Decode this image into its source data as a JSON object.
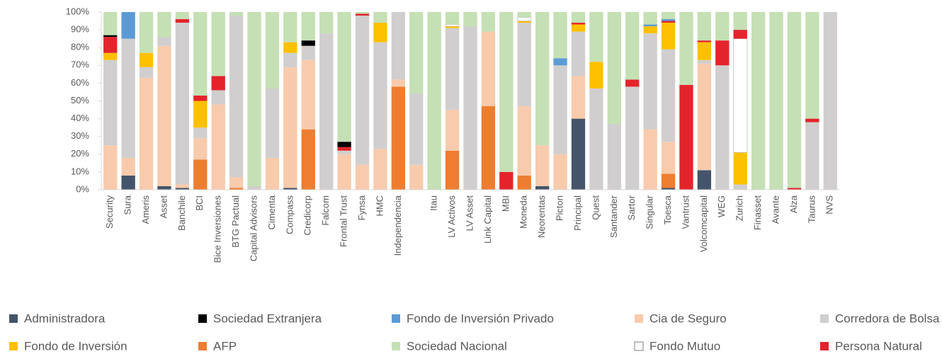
{
  "chart_data": {
    "type": "bar",
    "stacked": true,
    "categories": [
      "Security",
      "Sura",
      "Ameris",
      "Asset",
      "Banchile",
      "BCI",
      "Bice Inversiones",
      "BTG Pactual",
      "Capital Advisors",
      "Cimenta",
      "Compass",
      "Credicorp",
      "Falcom",
      "Frontal Trust",
      "Fynsa",
      "HMC",
      "Independencia",
      null,
      "Itau",
      "LV Activos",
      "LV Asset",
      "Link Capital",
      "MBI",
      "Moneda",
      "Neorentas",
      "Picton",
      "Principal",
      "Quest",
      "Santander",
      "Sartor",
      "Singular",
      "Toesca",
      "Vantrust",
      "Volcomcapital",
      "WEG",
      "Zurich",
      "Finasset",
      "Avante",
      "Alza",
      "Taurus",
      "NVS"
    ],
    "ylim": [
      0,
      100
    ],
    "yticks": [
      {
        "value": 0,
        "label": "0%"
      },
      {
        "value": 10,
        "label": "10%"
      },
      {
        "value": 20,
        "label": "20%"
      },
      {
        "value": 30,
        "label": "30%"
      },
      {
        "value": 40,
        "label": "40%"
      },
      {
        "value": 50,
        "label": "50%"
      },
      {
        "value": 60,
        "label": "60%"
      },
      {
        "value": 70,
        "label": "70%"
      },
      {
        "value": 80,
        "label": "80%"
      },
      {
        "value": 90,
        "label": "90%"
      },
      {
        "value": 100,
        "label": "100%"
      }
    ],
    "grid": false,
    "series": [
      {
        "name": "Administradora",
        "color": "#44546a",
        "values": [
          0,
          8,
          0,
          2,
          1,
          0,
          0,
          0,
          0,
          0,
          1,
          0,
          0,
          0,
          0,
          0,
          0,
          0,
          0,
          0,
          0,
          0,
          0,
          0,
          2,
          0,
          40,
          0,
          0,
          0,
          0,
          1,
          0,
          11,
          0,
          0,
          0,
          0,
          0,
          0,
          0
        ]
      },
      {
        "name": "AFP",
        "color": "#ed7d31",
        "values": [
          0,
          0,
          0,
          0,
          0,
          17,
          0,
          1,
          0,
          0,
          0,
          34,
          0,
          0,
          0,
          0,
          58,
          0,
          0,
          22,
          0,
          47,
          0,
          8,
          0,
          0,
          0,
          0,
          0,
          0,
          0,
          8,
          0,
          0,
          0,
          0,
          0,
          0,
          0,
          0,
          0
        ]
      },
      {
        "name": "Cia de Seguro",
        "color": "#f8cbad",
        "values": [
          25,
          10,
          63,
          79,
          2,
          12,
          48,
          6,
          0,
          18,
          68,
          39,
          0,
          20,
          14,
          23,
          4,
          14,
          0,
          23,
          0,
          42,
          0,
          39,
          23,
          20,
          24,
          0,
          0,
          0,
          34,
          18,
          0,
          60,
          0,
          0,
          0,
          0,
          0,
          0,
          0
        ]
      },
      {
        "name": "Corredora de Bolsa",
        "color": "#d0cece",
        "values": [
          48,
          67,
          6,
          5,
          91,
          6,
          8,
          91,
          2,
          39,
          8,
          8,
          88,
          2,
          84,
          60,
          38,
          40,
          0,
          46,
          92,
          0,
          0,
          47,
          0,
          50,
          25,
          57,
          37,
          58,
          54,
          52,
          0,
          2,
          70,
          3,
          0,
          0,
          0,
          38,
          100
        ]
      },
      {
        "name": "Fondo de Inversión",
        "color": "#ffc000",
        "values": [
          4,
          0,
          8,
          0,
          0,
          15,
          0,
          0,
          0,
          0,
          6,
          0,
          0,
          0,
          0,
          11,
          0,
          0,
          0,
          1,
          0,
          0,
          0,
          1,
          0,
          0,
          4,
          15,
          0,
          0,
          4,
          15,
          0,
          10,
          0,
          18,
          0,
          0,
          0,
          0,
          0
        ]
      },
      {
        "name": "Fondo Mutuo",
        "color": "#ffffff",
        "values": [
          0,
          0,
          0,
          0,
          0,
          0,
          0,
          0,
          0,
          0,
          0,
          0,
          0,
          0,
          0,
          0,
          0,
          0,
          0,
          1,
          0,
          0,
          0,
          2,
          0,
          0,
          0,
          0,
          0,
          0,
          0,
          0,
          0,
          0,
          0,
          64,
          0,
          0,
          0,
          0,
          0
        ]
      },
      {
        "name": "Persona Natural",
        "color": "#e3242b",
        "values": [
          9,
          0,
          0,
          0,
          2,
          3,
          8,
          0,
          0,
          0,
          0,
          0,
          0,
          2,
          1,
          0,
          0,
          0,
          0,
          0,
          0,
          0,
          10,
          0,
          0,
          0,
          1,
          0,
          0,
          4,
          0,
          1,
          59,
          1,
          14,
          5,
          0,
          0,
          1,
          2,
          0
        ]
      },
      {
        "name": "Sociedad Extranjera",
        "color": "#000000",
        "values": [
          1,
          0,
          0,
          0,
          0,
          0,
          0,
          0,
          0,
          0,
          0,
          3,
          0,
          3,
          0,
          0,
          0,
          0,
          0,
          0,
          0,
          0,
          0,
          0,
          0,
          0,
          0,
          0,
          0,
          0,
          0,
          0,
          0,
          0,
          0,
          0,
          0,
          0,
          0,
          0,
          0
        ]
      },
      {
        "name": "Fondo de Inversión Privado",
        "color": "#5b9bd5",
        "values": [
          0,
          15,
          0,
          0,
          0,
          0,
          0,
          0,
          0,
          0,
          0,
          0,
          0,
          0,
          0,
          0,
          0,
          0,
          0,
          0,
          0,
          0,
          0,
          0,
          0,
          4,
          0,
          0,
          0,
          0,
          1,
          1,
          0,
          0,
          0,
          0,
          0,
          0,
          0,
          0,
          0
        ]
      },
      {
        "name": "Sociedad Nacional",
        "color": "#c5e0b4",
        "values": [
          13,
          0,
          23,
          14,
          4,
          47,
          36,
          2,
          98,
          43,
          17,
          16,
          12,
          73,
          1,
          6,
          0,
          46,
          100,
          7,
          8,
          11,
          90,
          3,
          75,
          26,
          6,
          28,
          63,
          38,
          7,
          4,
          41,
          16,
          16,
          10,
          100,
          100,
          99,
          60,
          0
        ]
      }
    ]
  }
}
